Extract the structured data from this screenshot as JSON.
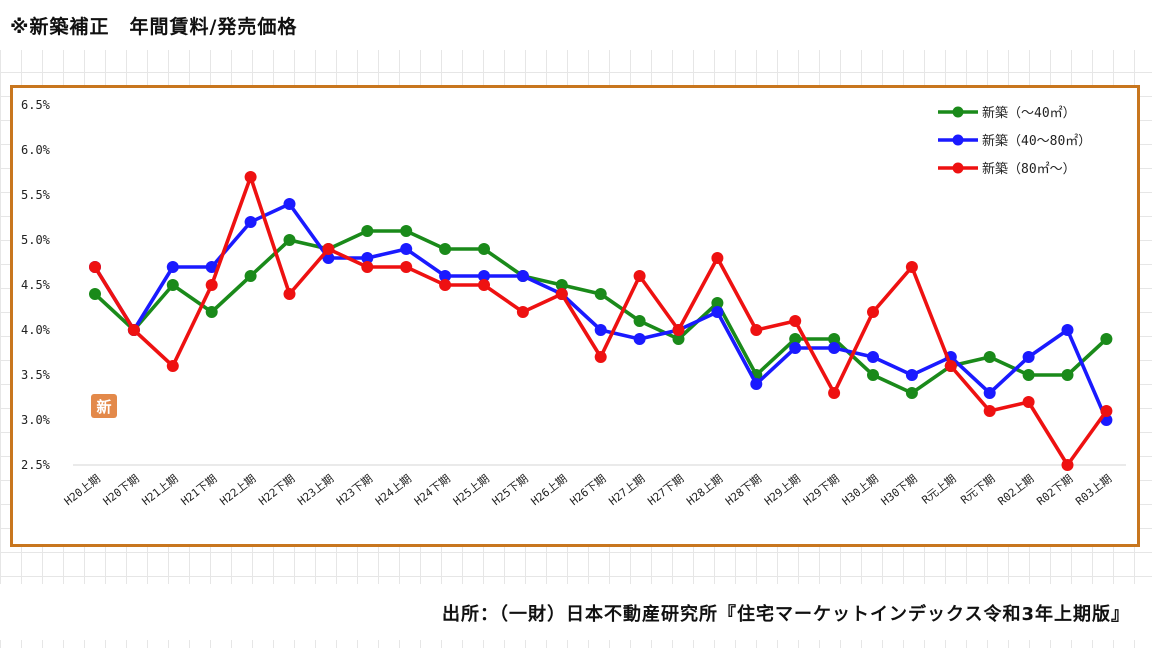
{
  "page": {
    "title": "※新築補正　年間賃料/発売価格",
    "source": "出所：（一財）日本不動産研究所『住宅マーケットインデックス令和3年上期版』",
    "badge": "新"
  },
  "chart_data": {
    "type": "line",
    "title": "",
    "xlabel": "",
    "ylabel": "",
    "categories": [
      "H20上期",
      "H20下期",
      "H21上期",
      "H21下期",
      "H22上期",
      "H22下期",
      "H23上期",
      "H23下期",
      "H24上期",
      "H24下期",
      "H25上期",
      "H25下期",
      "H26上期",
      "H26下期",
      "H27上期",
      "H27下期",
      "H28上期",
      "H28下期",
      "H29上期",
      "H29下期",
      "H30上期",
      "H30下期",
      "R元上期",
      "R元下期",
      "R02上期",
      "R02下期",
      "R03上期"
    ],
    "ylim": [
      2.5,
      6.5
    ],
    "yticks": [
      "6.5%",
      "6.0%",
      "5.5%",
      "5.0%",
      "4.5%",
      "4.0%",
      "3.5%",
      "3.0%",
      "2.5%"
    ],
    "ytick_values": [
      6.5,
      6.0,
      5.5,
      5.0,
      4.5,
      4.0,
      3.5,
      3.0,
      2.5
    ],
    "grid": "horizontal-baseline-only",
    "legend_position": "top-right",
    "series": [
      {
        "name": "新築（～40㎡）",
        "color": "#1a8a1a",
        "values": [
          4.4,
          4.0,
          4.5,
          4.2,
          4.6,
          5.0,
          4.9,
          5.1,
          5.1,
          4.9,
          4.9,
          4.6,
          4.5,
          4.4,
          4.1,
          3.9,
          4.3,
          3.5,
          3.9,
          3.9,
          3.5,
          3.3,
          3.6,
          3.7,
          3.5,
          3.5,
          3.9
        ]
      },
      {
        "name": "新築（40～80㎡）",
        "color": "#1a1aff",
        "values": [
          4.7,
          4.0,
          4.7,
          4.7,
          5.2,
          5.4,
          4.8,
          4.8,
          4.9,
          4.6,
          4.6,
          4.6,
          4.4,
          4.0,
          3.9,
          4.0,
          4.2,
          3.4,
          3.8,
          3.8,
          3.7,
          3.5,
          3.7,
          3.3,
          3.7,
          4.0,
          3.0
        ]
      },
      {
        "name": "新築（80㎡～）",
        "color": "#ee1111",
        "values": [
          4.7,
          4.0,
          3.6,
          4.5,
          5.7,
          4.4,
          4.9,
          4.7,
          4.7,
          4.5,
          4.5,
          4.2,
          4.4,
          3.7,
          4.6,
          4.0,
          4.8,
          4.0,
          4.1,
          3.3,
          4.2,
          4.7,
          3.6,
          3.1,
          3.2,
          2.5,
          3.1
        ]
      }
    ]
  }
}
